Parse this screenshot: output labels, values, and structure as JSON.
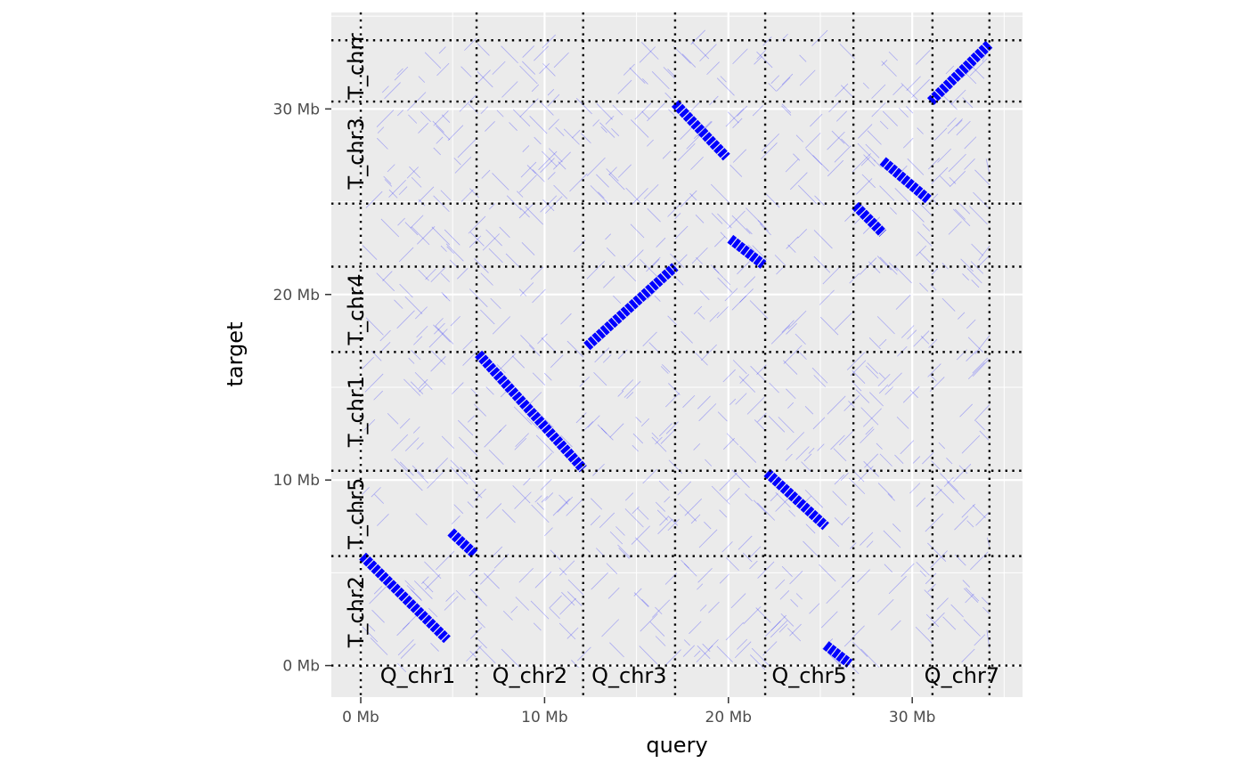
{
  "chart_data": {
    "type": "scatter",
    "title": "",
    "xlabel": "query",
    "ylabel": "target",
    "xlim": [
      -1.6,
      36.0
    ],
    "ylim": [
      -1.7,
      35.2
    ],
    "x_unit": "Mb",
    "y_unit": "Mb",
    "grid": true,
    "legend": "none",
    "colors": {
      "panel": "#ebebeb",
      "grid": "#ffffff",
      "segment": "#0000ff",
      "divider": "#000000",
      "tick": "#4d4d4d"
    },
    "x_ticks": [
      {
        "value": 0,
        "label": "0 Mb"
      },
      {
        "value": 10,
        "label": "10 Mb"
      },
      {
        "value": 20,
        "label": "20 Mb"
      },
      {
        "value": 30,
        "label": "30 Mb"
      }
    ],
    "y_ticks": [
      {
        "value": 0,
        "label": "0 Mb"
      },
      {
        "value": 10,
        "label": "10 Mb"
      },
      {
        "value": 20,
        "label": "20 Mb"
      },
      {
        "value": 30,
        "label": "30 Mb"
      }
    ],
    "query_boundaries": [
      0,
      6.3,
      12.1,
      17.1,
      22.0,
      26.8,
      31.1,
      34.2
    ],
    "target_boundaries": [
      0,
      5.9,
      10.5,
      16.9,
      21.5,
      24.9,
      30.4,
      33.7
    ],
    "query_labels": [
      {
        "label": "Q_chr1",
        "x": 3.1
      },
      {
        "label": "Q_chr2",
        "x": 9.2
      },
      {
        "label": "Q_chr3",
        "x": 14.6
      },
      {
        "label": "Q_chr5",
        "x": 24.4
      },
      {
        "label": "Q_chr7",
        "x": 32.7
      }
    ],
    "target_labels": [
      {
        "label": "T_chr2",
        "y": 2.9
      },
      {
        "label": "T_chr5",
        "y": 8.2
      },
      {
        "label": "T_chr1",
        "y": 13.7
      },
      {
        "label": "T_chr4",
        "y": 19.2
      },
      {
        "label": "T_chr3",
        "y": 27.6
      },
      {
        "label": "T_chrr",
        "y": 32.3
      }
    ],
    "alignments": [
      {
        "x_start": 0.1,
        "y_start": 5.9,
        "x_end": 4.7,
        "y_end": 1.4
      },
      {
        "x_start": 4.9,
        "y_start": 7.2,
        "x_end": 6.2,
        "y_end": 6.0
      },
      {
        "x_start": 6.4,
        "y_start": 16.8,
        "x_end": 12.1,
        "y_end": 10.6
      },
      {
        "x_start": 12.3,
        "y_start": 17.2,
        "x_end": 17.1,
        "y_end": 21.5
      },
      {
        "x_start": 17.1,
        "y_start": 30.3,
        "x_end": 19.9,
        "y_end": 27.4
      },
      {
        "x_start": 20.1,
        "y_start": 23.0,
        "x_end": 21.9,
        "y_end": 21.6
      },
      {
        "x_start": 22.1,
        "y_start": 10.4,
        "x_end": 25.3,
        "y_end": 7.5
      },
      {
        "x_start": 25.3,
        "y_start": 1.1,
        "x_end": 26.6,
        "y_end": 0.1
      },
      {
        "x_start": 26.9,
        "y_start": 24.8,
        "x_end": 28.4,
        "y_end": 23.3
      },
      {
        "x_start": 28.4,
        "y_start": 27.2,
        "x_end": 30.9,
        "y_end": 25.1
      },
      {
        "x_start": 31.0,
        "y_start": 30.4,
        "x_end": 34.2,
        "y_end": 33.5
      }
    ]
  }
}
